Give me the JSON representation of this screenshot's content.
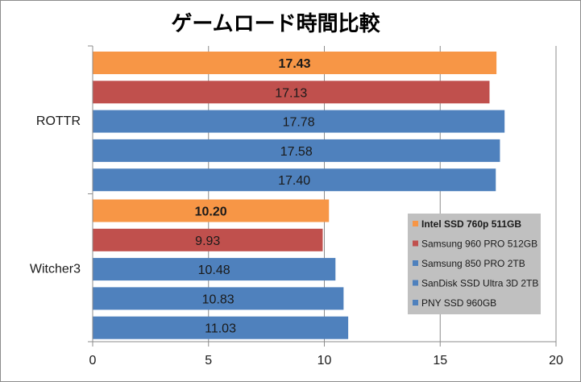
{
  "chart_data": {
    "type": "bar",
    "orientation": "horizontal",
    "title": "ゲームロード時間比較",
    "xlabel": "",
    "ylabel": "",
    "xlim": [
      0,
      20
    ],
    "x_ticks": [
      0,
      5,
      10,
      15,
      20
    ],
    "grid": true,
    "legend_position": "right",
    "categories": [
      "ROTTR",
      "Witcher3"
    ],
    "series": [
      {
        "name": "Intel SSD 760p 511GB",
        "color": "#f79646",
        "highlight": true,
        "values": [
          17.43,
          10.2
        ],
        "labels": [
          "17.43",
          "10.20"
        ]
      },
      {
        "name": "Samsung 960 PRO 512GB",
        "color": "#c0504d",
        "highlight": false,
        "values": [
          17.13,
          9.93
        ],
        "labels": [
          "17.13",
          "9.93"
        ]
      },
      {
        "name": "Samsung 850 PRO 2TB",
        "color": "#4f81bd",
        "highlight": false,
        "values": [
          17.78,
          10.48
        ],
        "labels": [
          "17.78",
          "10.48"
        ]
      },
      {
        "name": "SanDisk SSD Ultra 3D 2TB",
        "color": "#4f81bd",
        "highlight": false,
        "values": [
          17.58,
          10.83
        ],
        "labels": [
          "17.58",
          "10.83"
        ]
      },
      {
        "name": "PNY SSD 960GB",
        "color": "#4f81bd",
        "highlight": false,
        "values": [
          17.4,
          11.03
        ],
        "labels": [
          "17.40",
          "11.03"
        ]
      }
    ]
  }
}
